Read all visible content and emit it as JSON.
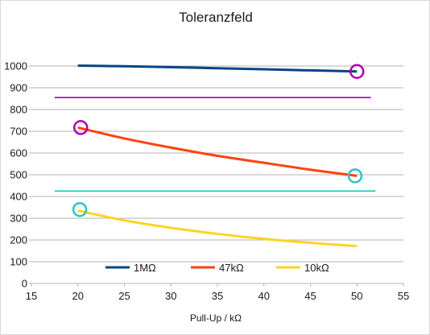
{
  "chart_data": {
    "type": "line",
    "title": "Toleranzfeld",
    "xlabel": "Pull-Up / kΩ",
    "ylabel": "",
    "xlim": [
      15,
      55
    ],
    "ylim": [
      0,
      1100
    ],
    "xticks": [
      "15",
      "20",
      "25",
      "30",
      "35",
      "40",
      "45",
      "50",
      "55"
    ],
    "yticks": [
      "0",
      "100",
      "200",
      "300",
      "400",
      "500",
      "600",
      "700",
      "800",
      "900",
      "1000"
    ],
    "grid": true,
    "legend_position": "bottom-inside",
    "series": [
      {
        "name": "1MΩ",
        "color": "#004586",
        "points": [
          [
            20,
            1002
          ],
          [
            25,
            999
          ],
          [
            30,
            995
          ],
          [
            35,
            990
          ],
          [
            40,
            985
          ],
          [
            45,
            980
          ],
          [
            50,
            975
          ]
        ]
      },
      {
        "name": "47kΩ",
        "color": "#ff420e",
        "points": [
          [
            20,
            717
          ],
          [
            25,
            667
          ],
          [
            30,
            625
          ],
          [
            35,
            587
          ],
          [
            40,
            555
          ],
          [
            45,
            523
          ],
          [
            50,
            495
          ]
        ]
      },
      {
        "name": "10kΩ",
        "color": "#ffd320",
        "points": [
          [
            20,
            335
          ],
          [
            25,
            290
          ],
          [
            30,
            256
          ],
          [
            35,
            228
          ],
          [
            40,
            205
          ],
          [
            45,
            187
          ],
          [
            50,
            172
          ]
        ]
      }
    ],
    "reference_lines": [
      {
        "y": 855,
        "x_range": [
          17.5,
          51.5
        ],
        "color": "#c000c0"
      },
      {
        "y": 425,
        "x_range": [
          17.5,
          52.0
        ],
        "color": "#2ec4c4"
      }
    ],
    "markers": [
      {
        "x": 50,
        "y": 975,
        "color": "#b000b0"
      },
      {
        "x": 20.3,
        "y": 717,
        "color": "#b000b0"
      },
      {
        "x": 49.8,
        "y": 495,
        "color": "#2ec4c4"
      },
      {
        "x": 20.2,
        "y": 340,
        "color": "#2ec4c4"
      }
    ]
  }
}
